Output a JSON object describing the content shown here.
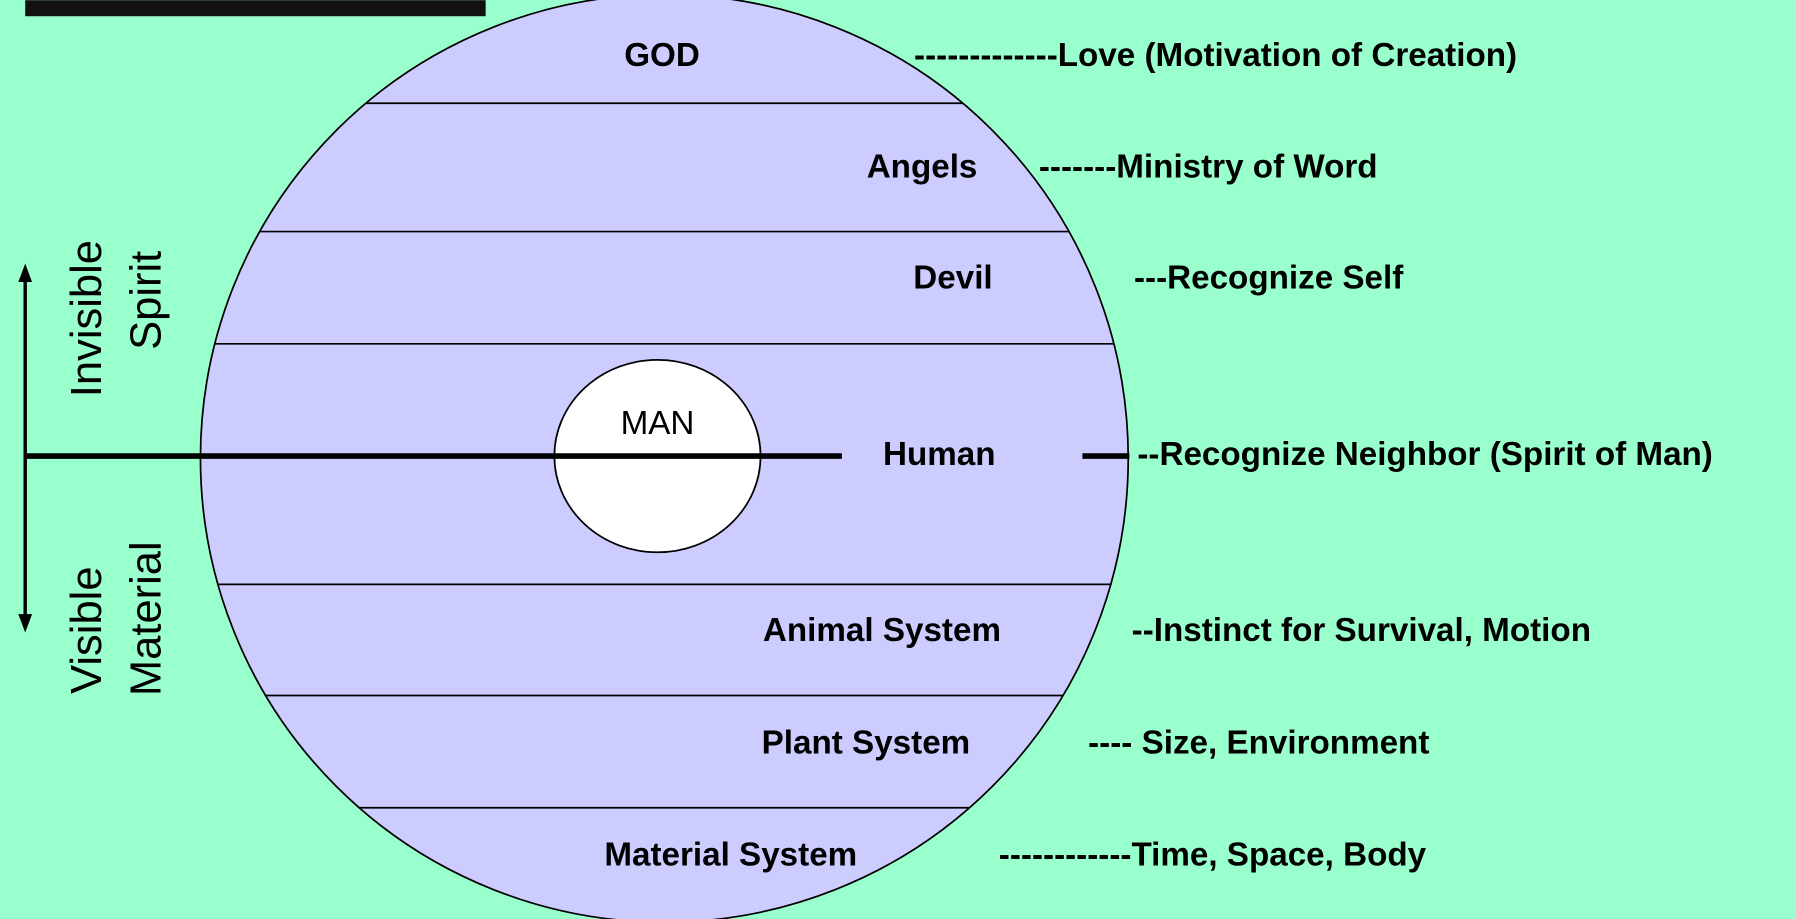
{
  "levels": [
    {
      "label": "GOD",
      "description": "-------------Love (Motivation of Creation)"
    },
    {
      "label": "Angels",
      "description": "-------Ministry of Word"
    },
    {
      "label": "Devil",
      "description": "---Recognize Self"
    },
    {
      "label": "Human",
      "description": "--Recognize Neighbor (Spirit of Man)"
    },
    {
      "label": "Animal System",
      "description": "--Instinct for Survival, Motion"
    },
    {
      "label": "Plant System",
      "description": "---- Size, Environment"
    },
    {
      "label": "Material System",
      "description": "------------Time, Space, Body"
    }
  ],
  "man": "MAN",
  "axis": {
    "upper": [
      "Invisible",
      "Spirit"
    ],
    "lower": [
      "Visible",
      "Material"
    ]
  }
}
